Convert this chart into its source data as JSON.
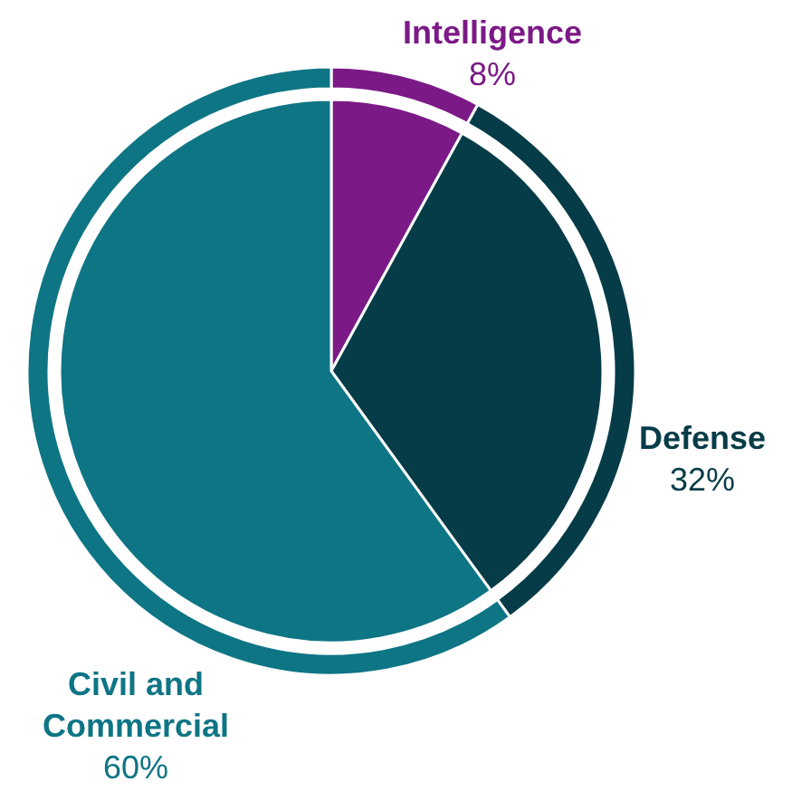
{
  "chart_data": {
    "type": "pie",
    "categories": [
      "Intelligence",
      "Defense",
      "Civil and Commercial"
    ],
    "colors": [
      "#7b1a86",
      "#063c48",
      "#0e7585"
    ],
    "series": [
      {
        "type": "pie",
        "values": [
          8,
          32,
          60
        ]
      },
      {
        "type": "donut",
        "values": [
          8,
          32,
          60
        ]
      }
    ],
    "value_labels": [
      "8%",
      "32%",
      "60%"
    ]
  }
}
